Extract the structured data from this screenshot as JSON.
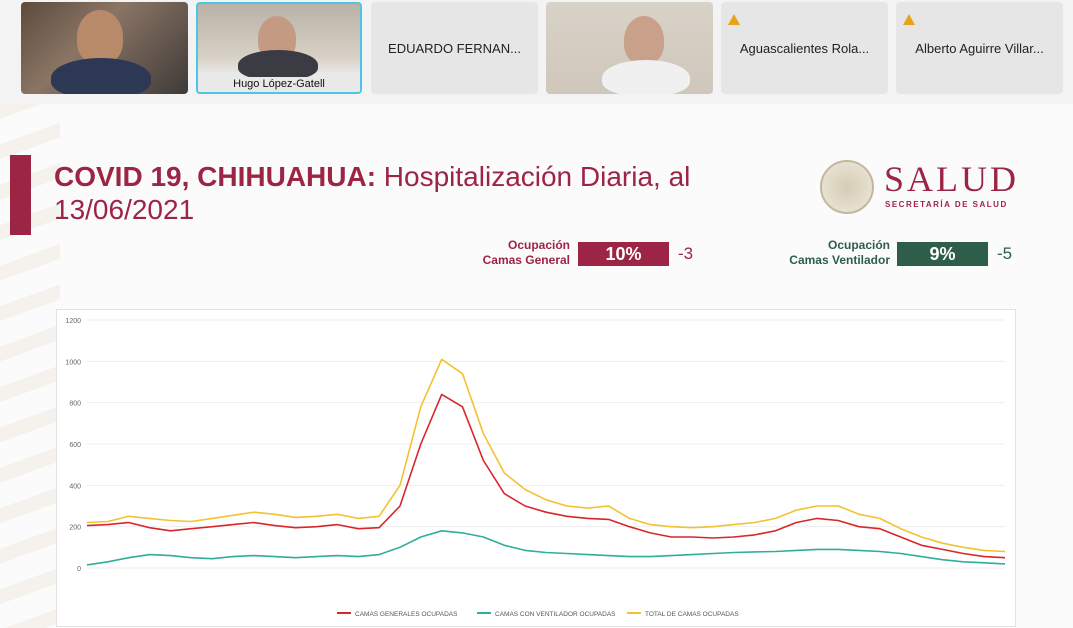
{
  "participants": [
    {
      "name": "",
      "warning": false
    },
    {
      "name": "Hugo López-Gatell",
      "warning": false,
      "active": true
    },
    {
      "name": "EDUARDO FERNAN...",
      "warning": false
    },
    {
      "name": "",
      "warning": false
    },
    {
      "name": "Aguascalientes Rola...",
      "warning": true
    },
    {
      "name": "Alberto Aguirre Villar...",
      "warning": true
    }
  ],
  "slide": {
    "title_bold": "COVID 19, CHIHUAHUA:",
    "title_rest": " Hospitalización Diaria, al 13/06/2021",
    "logo_word": "SALUD",
    "logo_sub": "SECRETARÍA DE SALUD",
    "kpis": [
      {
        "label_line1": "Ocupación",
        "label_line2": "Camas General",
        "value": "10%",
        "delta": "-3",
        "color": "#9c2444"
      },
      {
        "label_line1": "Ocupación",
        "label_line2": "Camas Ventilador",
        "value": "9%",
        "delta": "-5",
        "color": "#2e5e4a"
      }
    ]
  },
  "chart_data": {
    "type": "line",
    "ylim": [
      0,
      1200
    ],
    "yticks": [
      "0",
      "200",
      "400",
      "600",
      "800",
      "1000",
      "1200"
    ],
    "x": [
      0,
      10,
      20,
      30,
      40,
      50,
      60,
      70,
      80,
      90,
      100,
      110,
      120,
      130,
      140,
      150,
      160,
      170,
      180,
      190,
      200,
      210,
      220,
      230,
      240,
      250,
      260,
      270,
      280,
      290,
      300,
      310,
      320,
      330,
      340,
      350,
      360,
      370,
      380,
      390,
      400,
      410,
      420,
      430,
      440
    ],
    "series": [
      {
        "name": "CAMAS GENERALES OCUPADAS",
        "color": "#d9262b",
        "values": [
          205,
          210,
          220,
          195,
          180,
          190,
          200,
          210,
          220,
          205,
          195,
          200,
          210,
          190,
          195,
          300,
          600,
          840,
          780,
          520,
          360,
          300,
          270,
          250,
          240,
          235,
          200,
          170,
          150,
          150,
          145,
          150,
          160,
          180,
          220,
          240,
          230,
          200,
          190,
          150,
          110,
          90,
          70,
          55,
          50
        ]
      },
      {
        "name": "CAMAS CON VENTILADOR OCUPADAS",
        "color": "#2fae9a",
        "values": [
          15,
          30,
          50,
          65,
          60,
          50,
          45,
          55,
          60,
          55,
          50,
          55,
          60,
          55,
          65,
          100,
          150,
          180,
          170,
          150,
          110,
          85,
          75,
          70,
          65,
          60,
          55,
          55,
          60,
          65,
          70,
          75,
          78,
          80,
          85,
          90,
          90,
          85,
          80,
          70,
          55,
          40,
          30,
          25,
          20
        ]
      },
      {
        "name": "TOTAL DE CAMAS OCUPADAS",
        "color": "#f2c230",
        "values": [
          220,
          225,
          250,
          240,
          230,
          225,
          240,
          255,
          270,
          260,
          245,
          250,
          260,
          240,
          250,
          400,
          780,
          1010,
          940,
          650,
          460,
          380,
          330,
          300,
          290,
          300,
          240,
          210,
          200,
          195,
          200,
          210,
          220,
          240,
          280,
          300,
          300,
          260,
          240,
          190,
          150,
          120,
          100,
          85,
          80
        ]
      }
    ]
  }
}
